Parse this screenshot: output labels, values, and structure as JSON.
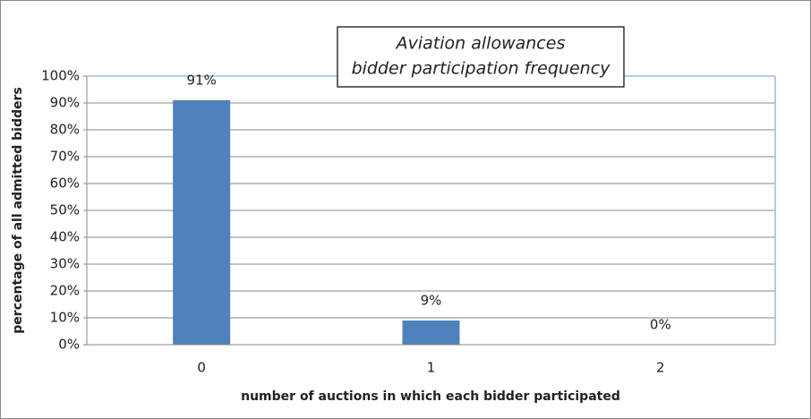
{
  "chart_data": {
    "type": "bar",
    "title": [
      "Aviation allowances",
      "bidder participation frequency"
    ],
    "x_label": "number of auctions in which each bidder participated",
    "y_label": "percentage of all admitted bidders",
    "categories": [
      "0",
      "1",
      "2"
    ],
    "values": [
      91,
      9,
      0
    ],
    "value_labels": [
      "91%",
      "9%",
      "0%"
    ],
    "color": "#4f81bd",
    "ylim": [
      0,
      100
    ],
    "yticks": [
      {
        "value": 0,
        "label": "0%"
      },
      {
        "value": 10,
        "label": "10%"
      },
      {
        "value": 20,
        "label": "20%"
      },
      {
        "value": 30,
        "label": "30%"
      },
      {
        "value": 40,
        "label": "40%"
      },
      {
        "value": 50,
        "label": "50%"
      },
      {
        "value": 60,
        "label": "60%"
      },
      {
        "value": 70,
        "label": "70%"
      },
      {
        "value": 80,
        "label": "80%"
      },
      {
        "value": 90,
        "label": "90%"
      },
      {
        "value": 100,
        "label": "100%"
      }
    ],
    "grid": true
  }
}
